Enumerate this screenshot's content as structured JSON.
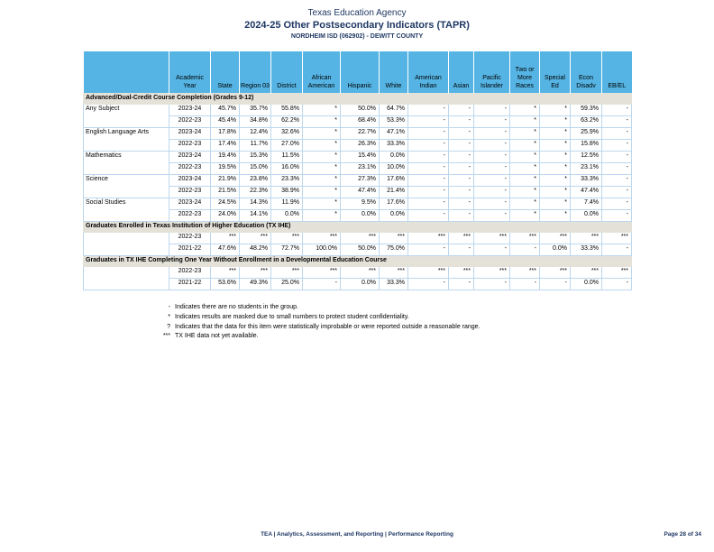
{
  "header": {
    "line1": "Texas Education Agency",
    "line2": "2024-25 Other Postsecondary Indicators (TAPR)",
    "line3": "NORDHEIM ISD (062902) - DEWITT COUNTY"
  },
  "colors": {
    "header_blue": "#55B4E4",
    "grid_blue": "#BDD7EE",
    "section_band": "#E4E1D9",
    "navy": "#1F3864"
  },
  "table": {
    "columns": [
      "Academic Year",
      "State",
      "Region 03",
      "District",
      "African American",
      "Hispanic",
      "White",
      "American Indian",
      "Asian",
      "Pacific Islander",
      "Two or More Races",
      "Special Ed",
      "Econ Disadv",
      "EB/EL"
    ],
    "sections": [
      {
        "title": "Advanced/Dual-Credit Course Completion (Grades 9-12)",
        "groups": [
          {
            "label": "Any Subject",
            "rows": [
              {
                "year": "2023-24",
                "values": [
                  "45.7%",
                  "35.7%",
                  "55.8%",
                  "*",
                  "50.0%",
                  "64.7%",
                  "-",
                  "-",
                  "-",
                  "*",
                  "*",
                  "59.3%",
                  "-"
                ]
              },
              {
                "year": "2022-23",
                "values": [
                  "45.4%",
                  "34.8%",
                  "62.2%",
                  "*",
                  "68.4%",
                  "53.3%",
                  "-",
                  "-",
                  "-",
                  "*",
                  "*",
                  "63.2%",
                  "-"
                ]
              }
            ]
          },
          {
            "label": "English Language Arts",
            "rows": [
              {
                "year": "2023-24",
                "values": [
                  "17.8%",
                  "12.4%",
                  "32.6%",
                  "*",
                  "22.7%",
                  "47.1%",
                  "-",
                  "-",
                  "-",
                  "*",
                  "*",
                  "25.9%",
                  "-"
                ]
              },
              {
                "year": "2022-23",
                "values": [
                  "17.4%",
                  "11.7%",
                  "27.0%",
                  "*",
                  "26.3%",
                  "33.3%",
                  "-",
                  "-",
                  "-",
                  "*",
                  "*",
                  "15.8%",
                  "-"
                ]
              }
            ]
          },
          {
            "label": "Mathematics",
            "rows": [
              {
                "year": "2023-24",
                "values": [
                  "19.4%",
                  "15.3%",
                  "11.5%",
                  "*",
                  "15.4%",
                  "0.0%",
                  "-",
                  "-",
                  "-",
                  "*",
                  "*",
                  "12.5%",
                  "-"
                ]
              },
              {
                "year": "2022-23",
                "values": [
                  "19.5%",
                  "15.0%",
                  "16.0%",
                  "*",
                  "23.1%",
                  "10.0%",
                  "-",
                  "-",
                  "-",
                  "*",
                  "*",
                  "23.1%",
                  "-"
                ]
              }
            ]
          },
          {
            "label": "Science",
            "rows": [
              {
                "year": "2023-24",
                "values": [
                  "21.9%",
                  "23.8%",
                  "23.3%",
                  "*",
                  "27.3%",
                  "17.6%",
                  "-",
                  "-",
                  "-",
                  "*",
                  "*",
                  "33.3%",
                  "-"
                ]
              },
              {
                "year": "2022-23",
                "values": [
                  "21.5%",
                  "22.3%",
                  "38.9%",
                  "*",
                  "47.4%",
                  "21.4%",
                  "-",
                  "-",
                  "-",
                  "*",
                  "*",
                  "47.4%",
                  "-"
                ]
              }
            ]
          },
          {
            "label": "Social Studies",
            "rows": [
              {
                "year": "2023-24",
                "values": [
                  "24.5%",
                  "14.3%",
                  "11.9%",
                  "*",
                  "9.5%",
                  "17.6%",
                  "-",
                  "-",
                  "-",
                  "*",
                  "*",
                  "7.4%",
                  "-"
                ]
              },
              {
                "year": "2022-23",
                "values": [
                  "24.0%",
                  "14.1%",
                  "0.0%",
                  "*",
                  "0.0%",
                  "0.0%",
                  "-",
                  "-",
                  "-",
                  "*",
                  "*",
                  "0.0%",
                  "-"
                ]
              }
            ]
          }
        ]
      },
      {
        "title": "Graduates Enrolled in Texas Institution of Higher Education (TX IHE)",
        "groups": [
          {
            "label": "",
            "rows": [
              {
                "year": "2022-23",
                "values": [
                  "***",
                  "***",
                  "***",
                  "***",
                  "***",
                  "***",
                  "***",
                  "***",
                  "***",
                  "***",
                  "***",
                  "***",
                  "***"
                ]
              },
              {
                "year": "2021-22",
                "values": [
                  "47.6%",
                  "48.2%",
                  "72.7%",
                  "100.0%",
                  "50.0%",
                  "75.0%",
                  "-",
                  "-",
                  "-",
                  "-",
                  "0.0%",
                  "33.3%",
                  "-"
                ]
              }
            ]
          }
        ]
      },
      {
        "title": "Graduates in TX IHE Completing One Year Without Enrollment in a Developmental Education Course",
        "groups": [
          {
            "label": "",
            "rows": [
              {
                "year": "2022-23",
                "values": [
                  "***",
                  "***",
                  "***",
                  "***",
                  "***",
                  "***",
                  "***",
                  "***",
                  "***",
                  "***",
                  "***",
                  "***",
                  "***"
                ]
              },
              {
                "year": "2021-22",
                "values": [
                  "53.6%",
                  "49.3%",
                  "25.0%",
                  "-",
                  "0.0%",
                  "33.3%",
                  "-",
                  "-",
                  "-",
                  "-",
                  "-",
                  "0.0%",
                  "-"
                ]
              }
            ]
          }
        ]
      }
    ]
  },
  "footnotes": [
    {
      "marker": "-",
      "text": "Indicates there are no students in the group."
    },
    {
      "marker": "*",
      "text": "Indicates results are masked due to small numbers to protect student confidentiality."
    },
    {
      "marker": "?",
      "text": "Indicates that the data for this item were statistically improbable or were reported outside a reasonable range."
    },
    {
      "marker": "***",
      "text": "TX IHE data not yet available."
    }
  ],
  "footer": {
    "left": "TEA | Analytics, Assessment, and Reporting | Performance Reporting",
    "right": "Page 28 of 34"
  }
}
